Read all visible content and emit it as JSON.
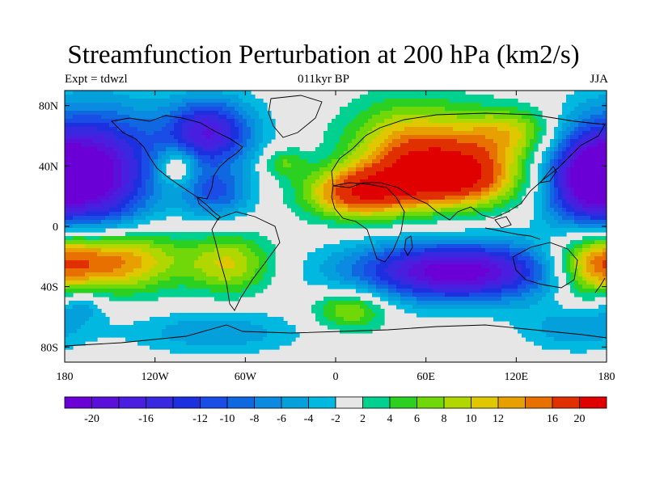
{
  "header": {
    "title": "Streamfunction Perturbation at 200 hPa (km2/s)",
    "left_label": "Expt = tdwzl",
    "center_label": "011kyr BP",
    "right_label": "JJA"
  },
  "map": {
    "projection": "cylindrical-equidistant",
    "lon_range": [
      -180,
      180
    ],
    "lat_range": [
      -90,
      90
    ],
    "lon_ticks": [
      {
        "value": -180,
        "label": "180"
      },
      {
        "value": -120,
        "label": "120W"
      },
      {
        "value": -60,
        "label": "60W"
      },
      {
        "value": 0,
        "label": "0"
      },
      {
        "value": 60,
        "label": "60E"
      },
      {
        "value": 120,
        "label": "120E"
      },
      {
        "value": 180,
        "label": "180"
      }
    ],
    "lat_ticks": [
      {
        "value": 80,
        "label": "80N"
      },
      {
        "value": 40,
        "label": "40N"
      },
      {
        "value": 0,
        "label": "0"
      },
      {
        "value": -40,
        "label": "40S"
      },
      {
        "value": -80,
        "label": "80S"
      }
    ],
    "background_color": "#e6e6e6",
    "coastline_color": "#000000",
    "field_features": [
      {
        "lon": -155,
        "lat": 35,
        "sx": 25,
        "sy": 30,
        "amp": -20
      },
      {
        "lon": -85,
        "lat": 62,
        "sx": 22,
        "sy": 16,
        "amp": -18
      },
      {
        "lon": -80,
        "lat": 22,
        "sx": 18,
        "sy": 12,
        "amp": -10
      },
      {
        "lon": -105,
        "lat": 40,
        "sx": 9,
        "sy": 9,
        "amp": 9
      },
      {
        "lon": -35,
        "lat": 42,
        "sx": 10,
        "sy": 7,
        "amp": 6
      },
      {
        "lon": 50,
        "lat": 52,
        "sx": 30,
        "sy": 22,
        "amp": 13
      },
      {
        "lon": 80,
        "lat": 33,
        "sx": 30,
        "sy": 14,
        "amp": 20
      },
      {
        "lon": 15,
        "lat": 22,
        "sx": 25,
        "sy": 12,
        "amp": 17
      },
      {
        "lon": 115,
        "lat": 62,
        "sx": 25,
        "sy": 12,
        "amp": 10
      },
      {
        "lon": 165,
        "lat": 33,
        "sx": 20,
        "sy": 25,
        "amp": -20
      },
      {
        "lon": -148,
        "lat": -22,
        "sx": 30,
        "sy": 15,
        "amp": 17
      },
      {
        "lon": -70,
        "lat": -25,
        "sx": 20,
        "sy": 14,
        "amp": 10
      },
      {
        "lon": 80,
        "lat": -30,
        "sx": 50,
        "sy": 14,
        "amp": -22
      },
      {
        "lon": 170,
        "lat": -25,
        "sx": 20,
        "sy": 16,
        "amp": 14
      },
      {
        "lon": 10,
        "lat": -55,
        "sx": 18,
        "sy": 10,
        "amp": 9
      },
      {
        "lon": -80,
        "lat": -70,
        "sx": 40,
        "sy": 10,
        "amp": -6
      },
      {
        "lon": 160,
        "lat": -68,
        "sx": 25,
        "sy": 10,
        "amp": -6
      },
      {
        "lon": -170,
        "lat": -52,
        "sx": 12,
        "sy": 8,
        "amp": -6
      }
    ]
  },
  "colorbar": {
    "levels": [
      -20,
      -18,
      -16,
      -14,
      -12,
      -10,
      -8,
      -6,
      -4,
      -2,
      2,
      4,
      6,
      8,
      10,
      12,
      14,
      16,
      20
    ],
    "label_ticks": [
      -20,
      -16,
      -12,
      -10,
      -8,
      -6,
      -4,
      -2,
      2,
      4,
      6,
      8,
      10,
      12,
      16,
      20
    ],
    "colors": [
      "#6a00d6",
      "#5a10d8",
      "#4a1ee0",
      "#3828e0",
      "#1c30e0",
      "#1a4ce6",
      "#0f68e0",
      "#0a8ae0",
      "#04a0dc",
      "#00b8e0",
      "#e6e6e6",
      "#00d090",
      "#2cd020",
      "#70d808",
      "#b0d800",
      "#e0c800",
      "#e8a000",
      "#e87000",
      "#e03000",
      "#e00000"
    ]
  }
}
